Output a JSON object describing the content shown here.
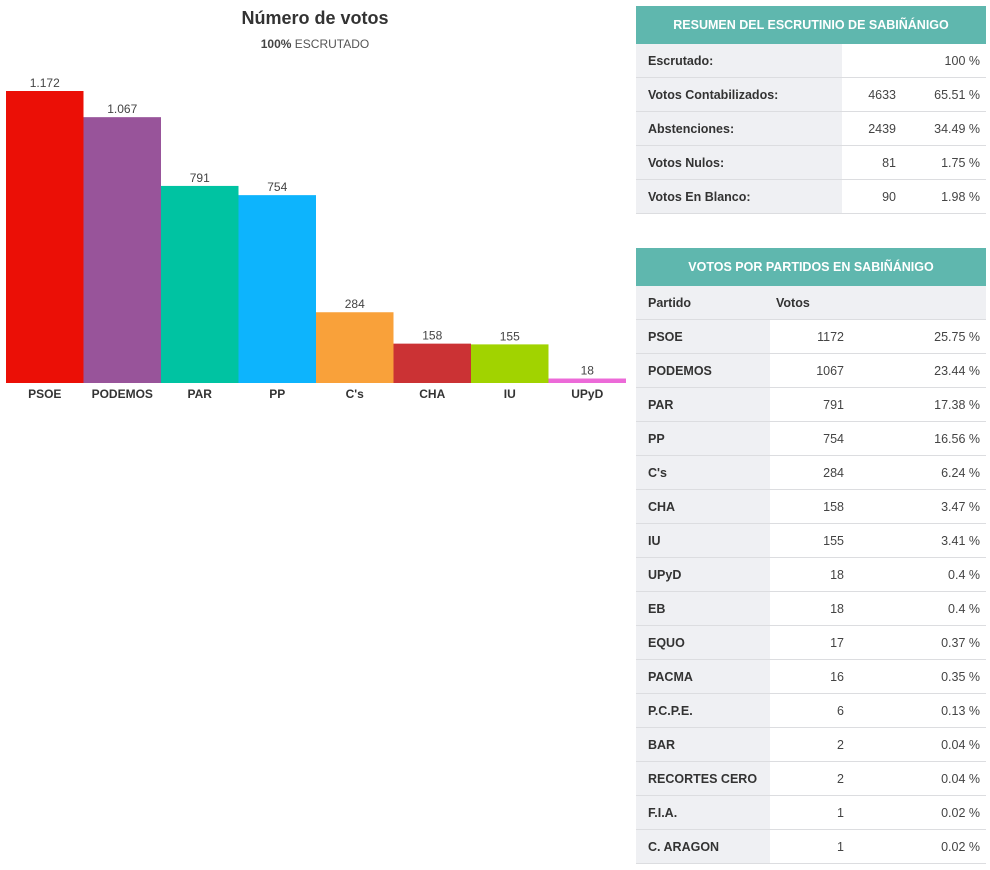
{
  "chart_data": {
    "type": "bar",
    "title": "Número de votos",
    "subtitle_bold": "100%",
    "subtitle": "ESCRUTADO",
    "categories": [
      "PSOE",
      "PODEMOS",
      "PAR",
      "PP",
      "C's",
      "CHA",
      "IU",
      "UPyD"
    ],
    "values": [
      1172,
      1067,
      791,
      754,
      284,
      158,
      155,
      18
    ],
    "data_labels": [
      "1.172",
      "1.067",
      "791",
      "754",
      "284",
      "158",
      "155",
      "18"
    ],
    "colors": [
      "#eb0f06",
      "#98549a",
      "#00c3a2",
      "#0db4fd",
      "#f9a13a",
      "#cb3234",
      "#a1d300",
      "#ec6ad8"
    ],
    "ylim": [
      0,
      1172
    ],
    "grid": false
  },
  "summary": {
    "title": "RESUMEN DEL ESCRUTINIO DE SABIÑÁNIGO",
    "rows": [
      {
        "label": "Escrutado:",
        "value": "",
        "pct": "100 %"
      },
      {
        "label": "Votos Contabilizados:",
        "value": "4633",
        "pct": "65.51 %"
      },
      {
        "label": "Abstenciones:",
        "value": "2439",
        "pct": "34.49 %"
      },
      {
        "label": "Votos Nulos:",
        "value": "81",
        "pct": "1.75 %"
      },
      {
        "label": "Votos En Blanco:",
        "value": "90",
        "pct": "1.98 %"
      }
    ]
  },
  "parties": {
    "title": "VOTOS POR PARTIDOS EN SABIÑÁNIGO",
    "col_party": "Partido",
    "col_votes": "Votos",
    "rows": [
      {
        "name": "PSOE",
        "votes": "1172",
        "pct": "25.75 %"
      },
      {
        "name": "PODEMOS",
        "votes": "1067",
        "pct": "23.44 %"
      },
      {
        "name": "PAR",
        "votes": "791",
        "pct": "17.38 %"
      },
      {
        "name": "PP",
        "votes": "754",
        "pct": "16.56 %"
      },
      {
        "name": "C's",
        "votes": "284",
        "pct": "6.24 %"
      },
      {
        "name": "CHA",
        "votes": "158",
        "pct": "3.47 %"
      },
      {
        "name": "IU",
        "votes": "155",
        "pct": "3.41 %"
      },
      {
        "name": "UPyD",
        "votes": "18",
        "pct": "0.4 %"
      },
      {
        "name": "EB",
        "votes": "18",
        "pct": "0.4 %"
      },
      {
        "name": "EQUO",
        "votes": "17",
        "pct": "0.37 %"
      },
      {
        "name": "PACMA",
        "votes": "16",
        "pct": "0.35 %"
      },
      {
        "name": "P.C.P.E.",
        "votes": "6",
        "pct": "0.13 %"
      },
      {
        "name": "BAR",
        "votes": "2",
        "pct": "0.04 %"
      },
      {
        "name": "RECORTES CERO",
        "votes": "2",
        "pct": "0.04 %"
      },
      {
        "name": "F.I.A.",
        "votes": "1",
        "pct": "0.02 %"
      },
      {
        "name": "C. ARAGON",
        "votes": "1",
        "pct": "0.02 %"
      }
    ]
  }
}
